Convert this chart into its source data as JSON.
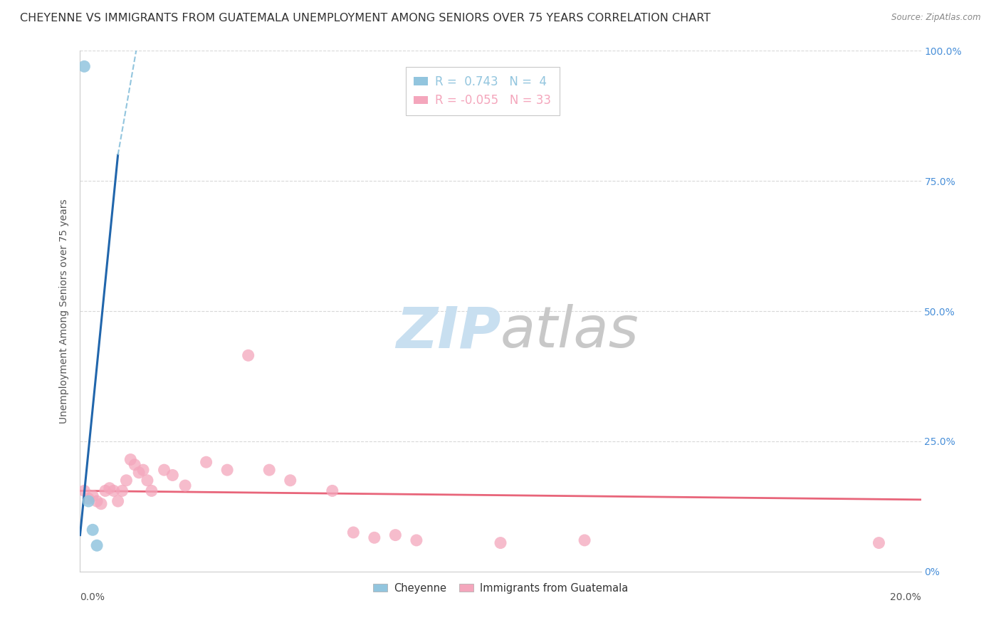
{
  "title": "CHEYENNE VS IMMIGRANTS FROM GUATEMALA UNEMPLOYMENT AMONG SENIORS OVER 75 YEARS CORRELATION CHART",
  "source": "Source: ZipAtlas.com",
  "ylabel": "Unemployment Among Seniors over 75 years",
  "xlim": [
    0.0,
    0.2
  ],
  "ylim": [
    0.0,
    1.0
  ],
  "yticks": [
    0.0,
    0.25,
    0.5,
    0.75,
    1.0
  ],
  "ytick_labels_right": [
    "0%",
    "25.0%",
    "50.0%",
    "75.0%",
    "100.0%"
  ],
  "xtick_left_label": "0.0%",
  "xtick_right_label": "20.0%",
  "legend_entries": [
    {
      "label": "Cheyenne",
      "R": "0.743",
      "N": "4",
      "color": "#92c5de"
    },
    {
      "label": "Immigrants from Guatemala",
      "R": "-0.055",
      "N": "33",
      "color": "#f4a6bc"
    }
  ],
  "cheyenne_points": [
    [
      0.001,
      0.97
    ],
    [
      0.002,
      0.135
    ],
    [
      0.003,
      0.08
    ],
    [
      0.004,
      0.05
    ]
  ],
  "cheyenne_trendline_solid": {
    "x": [
      0.0,
      0.009
    ],
    "y": [
      0.07,
      0.8
    ],
    "color": "#2166ac"
  },
  "cheyenne_trendline_dash": {
    "x": [
      0.009,
      0.022
    ],
    "y": [
      0.8,
      1.4
    ],
    "color": "#92c5de"
  },
  "guatemala_points": [
    [
      0.001,
      0.155
    ],
    [
      0.002,
      0.14
    ],
    [
      0.003,
      0.145
    ],
    [
      0.004,
      0.135
    ],
    [
      0.005,
      0.13
    ],
    [
      0.006,
      0.155
    ],
    [
      0.007,
      0.16
    ],
    [
      0.008,
      0.155
    ],
    [
      0.009,
      0.135
    ],
    [
      0.01,
      0.155
    ],
    [
      0.011,
      0.175
    ],
    [
      0.012,
      0.215
    ],
    [
      0.013,
      0.205
    ],
    [
      0.014,
      0.19
    ],
    [
      0.015,
      0.195
    ],
    [
      0.016,
      0.175
    ],
    [
      0.017,
      0.155
    ],
    [
      0.02,
      0.195
    ],
    [
      0.022,
      0.185
    ],
    [
      0.025,
      0.165
    ],
    [
      0.03,
      0.21
    ],
    [
      0.035,
      0.195
    ],
    [
      0.04,
      0.415
    ],
    [
      0.045,
      0.195
    ],
    [
      0.05,
      0.175
    ],
    [
      0.06,
      0.155
    ],
    [
      0.065,
      0.075
    ],
    [
      0.07,
      0.065
    ],
    [
      0.075,
      0.07
    ],
    [
      0.08,
      0.06
    ],
    [
      0.1,
      0.055
    ],
    [
      0.12,
      0.06
    ],
    [
      0.19,
      0.055
    ]
  ],
  "guatemala_trendline": {
    "x": [
      0.0,
      0.2
    ],
    "y": [
      0.155,
      0.138
    ],
    "color": "#e8657a"
  },
  "background_color": "#ffffff",
  "grid_color": "#d8d8d8",
  "title_fontsize": 11.5,
  "axis_label_fontsize": 10,
  "tick_fontsize": 10,
  "right_tick_color": "#4a90d9",
  "watermark_zip_color": "#c8dff0",
  "watermark_atlas_color": "#c8c8c8",
  "watermark_fontsize": 58
}
